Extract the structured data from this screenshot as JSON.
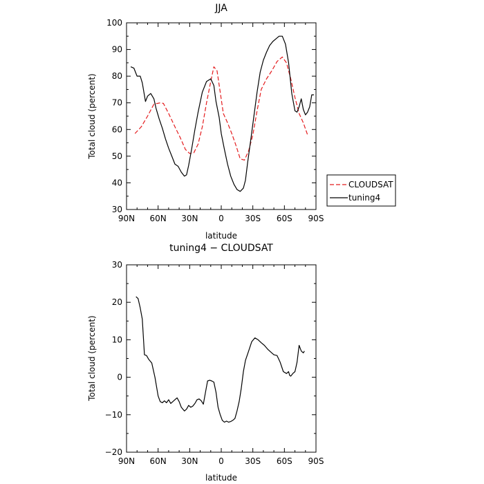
{
  "chart_data": [
    {
      "type": "line",
      "title": "JJA",
      "xlabel": "latitude",
      "ylabel": "Total cloud (percent)",
      "xlim": [
        90,
        -90
      ],
      "ylim": [
        30,
        100
      ],
      "xticks": [
        90,
        60,
        30,
        0,
        -30,
        -60,
        -90
      ],
      "xtick_labels": [
        "90N",
        "60N",
        "30N",
        "0",
        "30S",
        "60S",
        "90S"
      ],
      "yticks": [
        30,
        40,
        50,
        60,
        70,
        80,
        90,
        100
      ],
      "ytick_labels": [
        "30",
        "40",
        "50",
        "60",
        "70",
        "80",
        "90",
        "100"
      ],
      "legend_position": "right-outside",
      "series": [
        {
          "name": "CLOUDSAT",
          "color": "#e41a1c",
          "dash": "dashed",
          "x": [
            82,
            76,
            70,
            64,
            58,
            55,
            50,
            44,
            39,
            34,
            30,
            26,
            22,
            18,
            14,
            10,
            7,
            4,
            1,
            -2,
            -6,
            -10,
            -14,
            -18,
            -22,
            -26,
            -30,
            -34,
            -38,
            -43,
            -48,
            -53,
            -58,
            -62,
            -66,
            -70,
            -74,
            -78,
            -82
          ],
          "y": [
            58.5,
            61,
            65,
            69.5,
            70,
            69.8,
            66,
            61,
            57,
            52.5,
            51,
            51.3,
            54.5,
            61,
            70,
            78,
            83.5,
            82,
            74,
            66,
            62.5,
            58.5,
            54,
            49,
            48.5,
            52,
            58,
            67,
            75,
            79,
            82,
            85.5,
            87.2,
            85,
            79,
            72,
            66,
            62.5,
            58
          ]
        },
        {
          "name": "tuning4",
          "color": "#000000",
          "dash": "solid",
          "x": [
            86,
            83,
            80,
            77,
            75,
            72,
            70,
            67,
            64,
            62,
            59,
            56,
            53,
            50,
            47,
            44,
            41,
            38,
            35,
            33,
            31,
            28,
            25,
            22,
            18,
            14,
            10,
            7,
            5,
            2,
            0,
            -3,
            -6,
            -9,
            -12,
            -15,
            -18,
            -21,
            -23,
            -25,
            -28,
            -31,
            -34,
            -37,
            -40,
            -43,
            -46,
            -49,
            -52,
            -55,
            -58,
            -61,
            -64,
            -67,
            -70,
            -72,
            -74,
            -76,
            -78,
            -80,
            -82,
            -84,
            -86,
            -88
          ],
          "y": [
            83.5,
            83,
            80,
            80,
            77.5,
            70.5,
            72.5,
            73.5,
            71.5,
            68,
            64,
            60.5,
            56.5,
            53,
            50,
            47,
            46.2,
            44,
            42.5,
            43,
            46.5,
            53,
            60,
            66.5,
            74,
            78,
            79,
            76.5,
            70.5,
            64.5,
            58.5,
            52.5,
            47,
            42.5,
            39.5,
            37.5,
            36.8,
            38,
            41,
            47.5,
            56,
            65,
            74,
            81.5,
            86,
            89,
            91.5,
            93,
            94,
            95,
            95,
            92,
            85,
            73.5,
            67,
            66.5,
            68.5,
            71.5,
            67.5,
            65.5,
            66.5,
            68.5,
            73,
            73
          ]
        }
      ]
    },
    {
      "type": "line",
      "title": "tuning4 − CLOUDSAT",
      "xlabel": "latitude",
      "ylabel": "Total cloud (percent)",
      "xlim": [
        90,
        -90
      ],
      "ylim": [
        -20,
        30
      ],
      "xticks": [
        90,
        60,
        30,
        0,
        -30,
        -60,
        -90
      ],
      "xtick_labels": [
        "90N",
        "60N",
        "30N",
        "0",
        "30S",
        "60S",
        "90S"
      ],
      "yticks": [
        -20,
        -10,
        0,
        10,
        20,
        30
      ],
      "ytick_labels": [
        "−20",
        "−10",
        "0",
        "10",
        "20",
        "30"
      ],
      "series": [
        {
          "color": "#000000",
          "dash": "solid",
          "x": [
            81,
            79,
            77,
            75,
            73,
            71,
            69,
            66,
            63,
            60,
            58,
            56,
            54,
            52,
            50,
            48,
            46,
            44,
            42,
            40,
            38,
            35,
            33,
            31,
            29,
            27,
            25,
            23,
            21,
            19,
            17,
            15,
            13,
            11,
            9,
            7,
            5,
            3,
            1,
            -1,
            -3,
            -5,
            -7,
            -9,
            -11,
            -13,
            -15,
            -17,
            -19,
            -21,
            -23,
            -26,
            -29,
            -32,
            -35,
            -38,
            -41,
            -44,
            -46,
            -48,
            -50,
            -53,
            -56,
            -59,
            -62,
            -64,
            -65,
            -66,
            -68,
            -70,
            -72,
            -74,
            -76,
            -78,
            -79
          ],
          "y": [
            21.5,
            21,
            18.5,
            15.5,
            6,
            5.8,
            4.8,
            3.8,
            0,
            -5,
            -6.5,
            -6.8,
            -6.3,
            -6.8,
            -6,
            -7,
            -6.5,
            -6,
            -5.5,
            -6.5,
            -8,
            -9,
            -8.5,
            -7.5,
            -8,
            -7.7,
            -7,
            -6,
            -5.8,
            -6.3,
            -7.2,
            -4,
            -1,
            -0.8,
            -1,
            -1.3,
            -4,
            -8,
            -10,
            -11.5,
            -12,
            -11.7,
            -12,
            -11.8,
            -11.5,
            -11,
            -9,
            -6.5,
            -3,
            1.5,
            4.5,
            7,
            9.5,
            10.5,
            10,
            9.2,
            8.5,
            7.5,
            7,
            6.5,
            6,
            5.8,
            4,
            1.5,
            1,
            1.5,
            0.5,
            0.3,
            1,
            1.5,
            4,
            8.5,
            7,
            6.5,
            7
          ]
        }
      ]
    }
  ]
}
